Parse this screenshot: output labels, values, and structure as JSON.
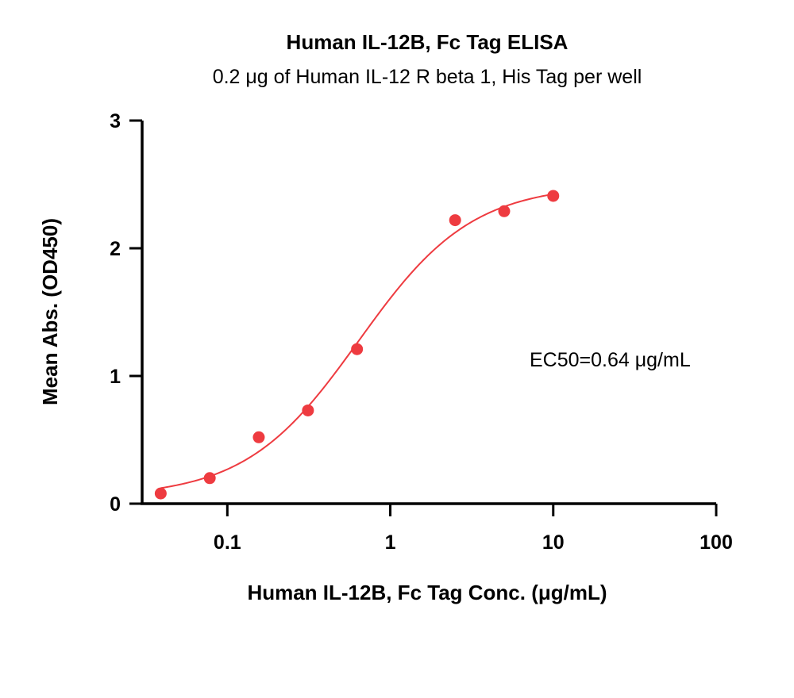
{
  "chart_data": {
    "type": "scatter",
    "title": "Human IL-12B, Fc Tag ELISA",
    "subtitle": "0.2 μg of Human IL-12 R beta 1, His Tag per well",
    "xlabel": "Human IL-12B, Fc Tag Conc. (μg/mL)",
    "ylabel": "Mean Abs. (OD450)",
    "x_scale": "log",
    "xlim": [
      0.03,
      100
    ],
    "ylim": [
      0,
      3
    ],
    "x_ticks": [
      0.1,
      1,
      10,
      100
    ],
    "x_tick_labels": [
      "0.1",
      "1",
      "10",
      "100"
    ],
    "y_ticks": [
      0,
      1,
      2,
      3
    ],
    "y_tick_labels": [
      "0",
      "1",
      "2",
      "3"
    ],
    "grid": false,
    "annotation": "EC50=0.64 μg/mL",
    "series": [
      {
        "x": [
          0.039,
          0.078,
          0.156,
          0.3125,
          0.625,
          2.5,
          5,
          10
        ],
        "y": [
          0.08,
          0.2,
          0.52,
          0.73,
          1.21,
          2.22,
          2.29,
          2.41
        ],
        "color": "#ee3b40",
        "fit": {
          "model": "4PL",
          "bottom": 0.05,
          "top": 2.5,
          "ec50": 0.64,
          "hill": 1.25,
          "x_range": [
            0.039,
            10
          ]
        }
      }
    ]
  }
}
